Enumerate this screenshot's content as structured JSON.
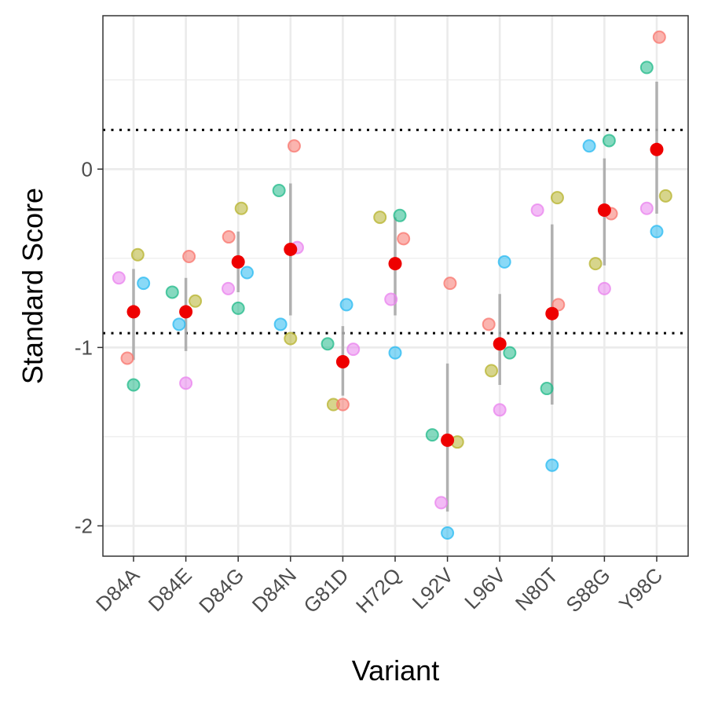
{
  "chart_data": {
    "type": "scatter",
    "xlabel": "Variant",
    "ylabel": "Standard Score",
    "categories": [
      "D84A",
      "D84E",
      "D84G",
      "D84N",
      "G81D",
      "H72Q",
      "L92V",
      "L96V",
      "N80T",
      "S88G",
      "Y98C"
    ],
    "ylim": [
      -2.17,
      0.86
    ],
    "yticks": [
      0,
      -1,
      -2
    ],
    "ytick_labels": [
      "0",
      "-1",
      "-2"
    ],
    "grid": true,
    "legend": "none",
    "reference_lines": [
      0.22,
      -0.92
    ],
    "colors": {
      "pink": "#f8766d",
      "olive": "#b7b32e",
      "green": "#21b98a",
      "blue": "#28b9f1",
      "magenta": "#ea83ee",
      "mean": "#ee0000",
      "errorbar": "#aaaaaa",
      "refline": "#000000"
    },
    "replicates": [
      [
        {
          "y": -0.61,
          "c": "magenta",
          "dx": -0.28
        },
        {
          "y": -1.06,
          "c": "pink",
          "dx": -0.12
        },
        {
          "y": -1.21,
          "c": "green",
          "dx": 0.0
        },
        {
          "y": -0.48,
          "c": "olive",
          "dx": 0.08
        },
        {
          "y": -0.64,
          "c": "blue",
          "dx": 0.19
        }
      ],
      [
        {
          "y": -0.69,
          "c": "green",
          "dx": -0.26
        },
        {
          "y": -0.87,
          "c": "blue",
          "dx": -0.13
        },
        {
          "y": -1.2,
          "c": "magenta",
          "dx": 0.0
        },
        {
          "y": -0.49,
          "c": "pink",
          "dx": 0.06
        },
        {
          "y": -0.74,
          "c": "olive",
          "dx": 0.18
        }
      ],
      [
        {
          "y": -0.38,
          "c": "pink",
          "dx": -0.18
        },
        {
          "y": -0.67,
          "c": "magenta",
          "dx": -0.19
        },
        {
          "y": -0.78,
          "c": "green",
          "dx": 0.0
        },
        {
          "y": -0.22,
          "c": "olive",
          "dx": 0.06
        },
        {
          "y": -0.58,
          "c": "blue",
          "dx": 0.17
        }
      ],
      [
        {
          "y": -0.12,
          "c": "green",
          "dx": -0.22
        },
        {
          "y": -0.87,
          "c": "blue",
          "dx": -0.19
        },
        {
          "y": -0.95,
          "c": "olive",
          "dx": 0.0
        },
        {
          "y": 0.13,
          "c": "pink",
          "dx": 0.07
        },
        {
          "y": -0.44,
          "c": "magenta",
          "dx": 0.13
        }
      ],
      [
        {
          "y": -0.98,
          "c": "green",
          "dx": -0.29
        },
        {
          "y": -1.32,
          "c": "olive",
          "dx": -0.18
        },
        {
          "y": -1.32,
          "c": "pink",
          "dx": 0.0
        },
        {
          "y": -0.76,
          "c": "blue",
          "dx": 0.07
        },
        {
          "y": -1.01,
          "c": "magenta",
          "dx": 0.2
        }
      ],
      [
        {
          "y": -0.27,
          "c": "olive",
          "dx": -0.29
        },
        {
          "y": -0.73,
          "c": "magenta",
          "dx": -0.08
        },
        {
          "y": -1.03,
          "c": "blue",
          "dx": 0.0
        },
        {
          "y": -0.26,
          "c": "green",
          "dx": 0.09
        },
        {
          "y": -0.39,
          "c": "pink",
          "dx": 0.16
        }
      ],
      [
        {
          "y": -1.49,
          "c": "green",
          "dx": -0.29
        },
        {
          "y": -1.87,
          "c": "magenta",
          "dx": -0.12
        },
        {
          "y": -2.04,
          "c": "blue",
          "dx": 0.0
        },
        {
          "y": -0.64,
          "c": "pink",
          "dx": 0.05
        },
        {
          "y": -1.53,
          "c": "olive",
          "dx": 0.19
        }
      ],
      [
        {
          "y": -0.87,
          "c": "pink",
          "dx": -0.21
        },
        {
          "y": -1.13,
          "c": "olive",
          "dx": -0.16
        },
        {
          "y": -1.35,
          "c": "magenta",
          "dx": 0.0
        },
        {
          "y": -0.52,
          "c": "blue",
          "dx": 0.09
        },
        {
          "y": -1.03,
          "c": "green",
          "dx": 0.19
        }
      ],
      [
        {
          "y": -0.23,
          "c": "magenta",
          "dx": -0.28
        },
        {
          "y": -1.23,
          "c": "green",
          "dx": -0.1
        },
        {
          "y": -1.66,
          "c": "blue",
          "dx": 0.0
        },
        {
          "y": -0.16,
          "c": "olive",
          "dx": 0.1
        },
        {
          "y": -0.76,
          "c": "pink",
          "dx": 0.12
        }
      ],
      [
        {
          "y": 0.13,
          "c": "blue",
          "dx": -0.29
        },
        {
          "y": -0.53,
          "c": "olive",
          "dx": -0.17
        },
        {
          "y": -0.67,
          "c": "magenta",
          "dx": 0.0
        },
        {
          "y": 0.16,
          "c": "green",
          "dx": 0.09
        },
        {
          "y": -0.25,
          "c": "pink",
          "dx": 0.13
        }
      ],
      [
        {
          "y": 0.57,
          "c": "green",
          "dx": -0.19
        },
        {
          "y": -0.22,
          "c": "magenta",
          "dx": -0.19
        },
        {
          "y": -0.35,
          "c": "blue",
          "dx": 0.0
        },
        {
          "y": 0.74,
          "c": "pink",
          "dx": 0.05
        },
        {
          "y": -0.15,
          "c": "olive",
          "dx": 0.17
        }
      ]
    ],
    "means": [
      -0.8,
      -0.8,
      -0.52,
      -0.45,
      -1.08,
      -0.53,
      -1.52,
      -0.98,
      -0.81,
      -0.23,
      0.11
    ],
    "error_low": [
      -1.07,
      -1.02,
      -0.69,
      -0.82,
      -1.27,
      -0.82,
      -1.92,
      -1.21,
      -1.32,
      -0.54,
      -0.25
    ],
    "error_high": [
      -0.56,
      -0.61,
      -0.35,
      -0.08,
      -0.88,
      -0.27,
      -1.09,
      -0.7,
      -0.31,
      0.06,
      0.49
    ]
  }
}
